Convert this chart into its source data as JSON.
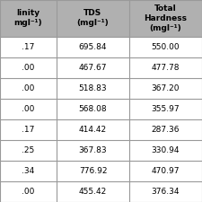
{
  "col1_header": [
    "linity",
    "mgl⁻¹)"
  ],
  "col2_header": [
    "TDS",
    "(mgl⁻¹)"
  ],
  "col3_header": [
    "Total",
    "Hardness",
    "(mgl⁻¹)"
  ],
  "col1_values": [
    ".17",
    ".00",
    ".00",
    ".00",
    ".17",
    ".25",
    ".34",
    ".00"
  ],
  "col2_values": [
    "695.84",
    "467.67",
    "518.83",
    "568.08",
    "414.42",
    "367.83",
    "776.92",
    "455.42"
  ],
  "col3_values": [
    "550.00",
    "477.78",
    "367.20",
    "355.97",
    "287.36",
    "330.94",
    "470.97",
    "376.34"
  ],
  "header_bg": "#b0b0b0",
  "grid_color": "#999999",
  "header_text_color": "#000000",
  "cell_text_color": "#000000"
}
